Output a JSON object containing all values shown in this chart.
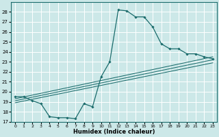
{
  "xlabel": "Humidex (Indice chaleur)",
  "ylabel": "",
  "xlim": [
    -0.5,
    23.5
  ],
  "ylim": [
    17,
    29
  ],
  "yticks": [
    17,
    18,
    19,
    20,
    21,
    22,
    23,
    24,
    25,
    26,
    27,
    28
  ],
  "xticks": [
    0,
    1,
    2,
    3,
    4,
    5,
    6,
    7,
    8,
    9,
    10,
    11,
    12,
    13,
    14,
    15,
    16,
    17,
    18,
    19,
    20,
    21,
    22,
    23
  ],
  "bg_color": "#cce8e8",
  "line_color": "#1a6b6b",
  "grid_color": "#ffffff",
  "main_curve": {
    "x": [
      0,
      1,
      2,
      3,
      4,
      5,
      6,
      7,
      8,
      9,
      10,
      11,
      12,
      13,
      14,
      15,
      16,
      17,
      18,
      19,
      20,
      21,
      22,
      23
    ],
    "y": [
      19.5,
      19.5,
      19.1,
      18.8,
      17.5,
      17.4,
      17.4,
      17.3,
      18.8,
      18.5,
      21.5,
      23.0,
      28.2,
      28.1,
      27.5,
      27.5,
      26.5,
      24.8,
      24.3,
      24.3,
      23.8,
      23.8,
      23.5,
      23.3
    ]
  },
  "reg_lines": [
    {
      "x": [
        0,
        23
      ],
      "y": [
        19.3,
        23.5
      ]
    },
    {
      "x": [
        0,
        23
      ],
      "y": [
        19.1,
        23.2
      ]
    },
    {
      "x": [
        0,
        23
      ],
      "y": [
        18.9,
        22.9
      ]
    }
  ]
}
